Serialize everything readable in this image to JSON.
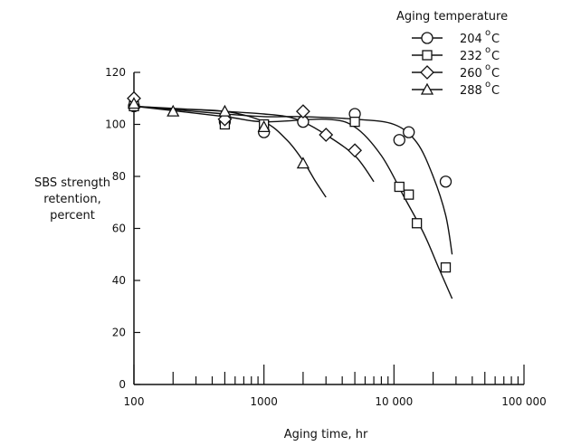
{
  "chart_data": {
    "type": "scatter",
    "x_scale": "log",
    "xlim": [
      100,
      100000
    ],
    "ylim": [
      0,
      120
    ],
    "x_ticks": [
      {
        "value": 100,
        "label": "100"
      },
      {
        "value": 1000,
        "label": "1000"
      },
      {
        "value": 10000,
        "label": "10 000"
      },
      {
        "value": 100000,
        "label": "100 000"
      }
    ],
    "y_ticks": [
      {
        "value": 0,
        "label": "0"
      },
      {
        "value": 20,
        "label": "20"
      },
      {
        "value": 40,
        "label": "40"
      },
      {
        "value": 60,
        "label": "60"
      },
      {
        "value": 80,
        "label": "80"
      },
      {
        "value": 100,
        "label": "100"
      },
      {
        "value": 120,
        "label": "120"
      }
    ],
    "xlabel": "Aging time,  hr",
    "ylabel_lines": [
      "SBS strength",
      "retention,",
      "percent"
    ],
    "legend": {
      "title": "Aging temperature",
      "placement": "top-right"
    },
    "grid": false,
    "series": [
      {
        "name": "204°C",
        "marker": "circle",
        "points": [
          [
            100,
            107
          ],
          [
            500,
            101
          ],
          [
            1000,
            97
          ],
          [
            2000,
            101
          ],
          [
            5000,
            104
          ],
          [
            11000,
            94
          ],
          [
            13000,
            97
          ],
          [
            25000,
            78
          ]
        ],
        "curve": [
          [
            100,
            107
          ],
          [
            500,
            104
          ],
          [
            1000,
            103
          ],
          [
            2000,
            103
          ],
          [
            5000,
            102
          ],
          [
            10000,
            100
          ],
          [
            15000,
            93
          ],
          [
            20000,
            80
          ],
          [
            25000,
            65
          ],
          [
            28000,
            50
          ]
        ]
      },
      {
        "name": "232°C",
        "marker": "square",
        "points": [
          [
            100,
            107
          ],
          [
            500,
            100
          ],
          [
            1000,
            100
          ],
          [
            5000,
            101
          ],
          [
            11000,
            76
          ],
          [
            13000,
            73
          ],
          [
            15000,
            62
          ],
          [
            25000,
            45
          ]
        ],
        "curve": [
          [
            100,
            107
          ],
          [
            500,
            103
          ],
          [
            1000,
            101
          ],
          [
            3000,
            102
          ],
          [
            5000,
            99
          ],
          [
            8000,
            88
          ],
          [
            12000,
            72
          ],
          [
            17000,
            58
          ],
          [
            22000,
            45
          ],
          [
            28000,
            33
          ]
        ]
      },
      {
        "name": "260°C",
        "marker": "diamond",
        "points": [
          [
            100,
            110
          ],
          [
            500,
            102
          ],
          [
            2000,
            105
          ],
          [
            3000,
            96
          ],
          [
            5000,
            90
          ]
        ],
        "curve": [
          [
            100,
            107
          ],
          [
            500,
            105
          ],
          [
            1000,
            104
          ],
          [
            1500,
            103
          ],
          [
            2000,
            101
          ],
          [
            3000,
            96
          ],
          [
            5000,
            88
          ],
          [
            7000,
            78
          ]
        ]
      },
      {
        "name": "288°C",
        "marker": "triangle",
        "points": [
          [
            100,
            108
          ],
          [
            200,
            105
          ],
          [
            500,
            105
          ],
          [
            1000,
            99
          ],
          [
            2000,
            85
          ]
        ],
        "curve": [
          [
            100,
            107
          ],
          [
            200,
            106
          ],
          [
            500,
            105
          ],
          [
            1000,
            101
          ],
          [
            1500,
            94
          ],
          [
            2000,
            86
          ],
          [
            2500,
            78
          ],
          [
            3000,
            72
          ]
        ]
      }
    ],
    "legend_labels": [
      {
        "base": "204",
        "sup": "o",
        "unit": "C"
      },
      {
        "base": "232",
        "sup": "o",
        "unit": "C"
      },
      {
        "base": "260",
        "sup": "o",
        "unit": "C"
      },
      {
        "base": "288",
        "sup": "o",
        "unit": "C"
      }
    ]
  }
}
